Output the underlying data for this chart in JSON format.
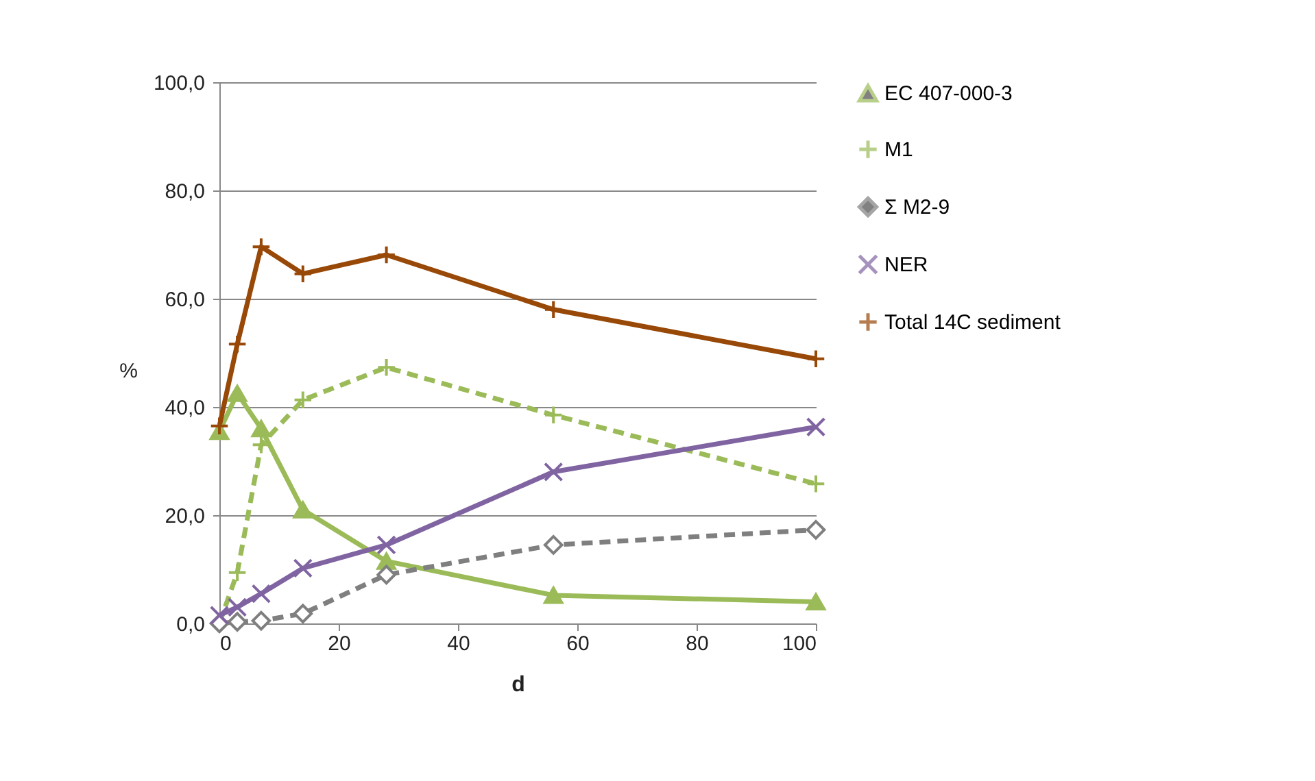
{
  "chart_data": {
    "type": "line",
    "xlabel": "d",
    "ylabel": "%",
    "x": [
      0,
      3,
      7,
      14,
      28,
      56,
      100
    ],
    "series": [
      {
        "name": "EC 407-000-3",
        "color": "#9bbb59",
        "marker": "triangle",
        "line_style": "solid",
        "values": [
          35.5,
          42.5,
          36,
          21,
          11.5,
          5.2,
          4
        ]
      },
      {
        "name": "M1",
        "color": "#9bbb59",
        "marker": "cross",
        "line_style": "dashed",
        "values": [
          0,
          9.4,
          33,
          41.3,
          47.3,
          38.5,
          25.8
        ]
      },
      {
        "name": "Σ M2-9",
        "color": "#7f7f7f",
        "marker": "diamond",
        "line_style": "dashed",
        "values": [
          0,
          0.3,
          0.5,
          1.8,
          9,
          14.5,
          17.3
        ]
      },
      {
        "name": "NER",
        "color": "#8064a2",
        "marker": "x",
        "line_style": "solid",
        "values": [
          1.5,
          3,
          5.5,
          10.2,
          14.5,
          28,
          36.3
        ]
      },
      {
        "name": "Total 14C sediment",
        "color": "#984807",
        "marker": "cross",
        "line_style": "solid",
        "values": [
          36.5,
          51.6,
          69.6,
          64.6,
          68.1,
          58,
          48.9
        ]
      }
    ],
    "xlim": [
      0,
      100
    ],
    "xticks": [
      0,
      20,
      40,
      60,
      80,
      100
    ],
    "ylim": [
      0,
      100
    ],
    "yticks": [
      {
        "value": 0,
        "label": "0,0"
      },
      {
        "value": 20,
        "label": "20,0"
      },
      {
        "value": 40,
        "label": "40,0"
      },
      {
        "value": 60,
        "label": "60,0"
      },
      {
        "value": 80,
        "label": "80,0"
      },
      {
        "value": 100,
        "label": "100,0"
      }
    ],
    "grid": "y",
    "legend": "right"
  }
}
